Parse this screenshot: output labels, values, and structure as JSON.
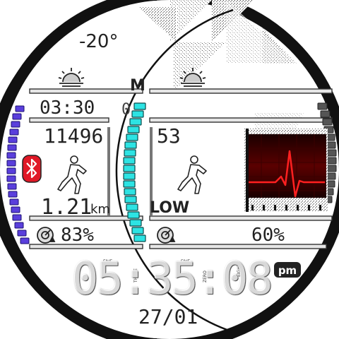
{
  "weather": {
    "temperature": "-20°",
    "icon": "sunrise-icon"
  },
  "left_panel": {
    "sunrise_time": "03:30",
    "steps": "11496",
    "distance": "1.21",
    "distance_unit": "km",
    "battery": "83%",
    "status_icon": "bluetooth-icon",
    "activity_icon": "runner-icon"
  },
  "right_panel": {
    "heart_rate": "53",
    "intensity": "LOW",
    "battery": "60%",
    "heart_icon": "heartbeat-icon"
  },
  "clock": {
    "time": "05:35:08",
    "ampm": "pm",
    "date": "27/01",
    "digit_names": [
      "ZERO",
      "FIVE",
      "THREE",
      "FIVE",
      "ZERO",
      "EIGHT"
    ]
  },
  "colors": {
    "left_gauge": "#5a3fdc",
    "center_gauge": "#2de3e3",
    "right_gauge": "#555555",
    "bluetooth_badge": "#e01826",
    "heart_trace": "#ff2020"
  }
}
